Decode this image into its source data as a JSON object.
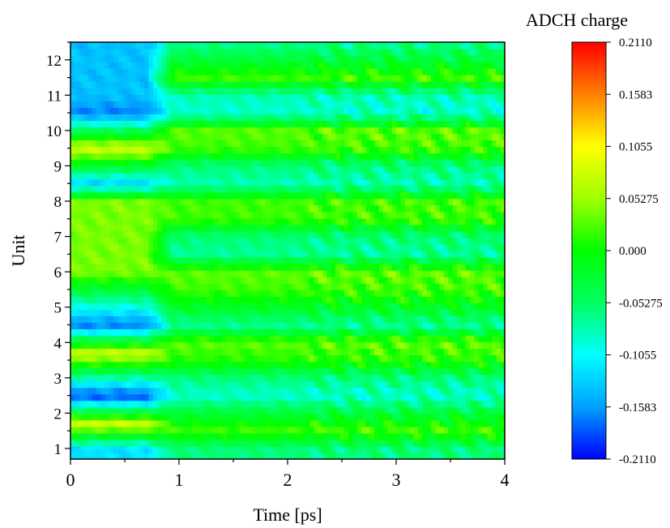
{
  "chart_data": {
    "type": "heatmap",
    "title": "",
    "xlabel": "Time [ps]",
    "ylabel": "Unit",
    "xlim": [
      0,
      4
    ],
    "ylim": [
      0.7,
      12.5
    ],
    "x_ticks": [
      "0",
      "1",
      "2",
      "3",
      "4"
    ],
    "y_ticks": [
      "1",
      "2",
      "3",
      "4",
      "5",
      "6",
      "7",
      "8",
      "9",
      "10",
      "11",
      "12"
    ],
    "colorbar": {
      "title": "ADCH charge",
      "range": [
        -0.211,
        0.211
      ],
      "tick_labels": [
        "0.2110",
        "0.1583",
        "0.1055",
        "0.05275",
        "0.000",
        "-0.05275",
        "-0.1055",
        "-0.1583",
        "-0.2110"
      ],
      "colors": [
        "#0000ff",
        "#00a0ff",
        "#00ffff",
        "#00ff60",
        "#00ff00",
        "#a0ff00",
        "#ffff00",
        "#ff8000",
        "#ff0000"
      ]
    },
    "row_profile": {
      "unit": [
        1.0,
        1.5,
        2.0,
        2.5,
        3.0,
        3.5,
        4.0,
        4.5,
        5.0,
        5.5,
        6.0,
        6.5,
        7.0,
        7.5,
        8.0,
        8.5,
        9.0,
        9.5,
        10.0,
        10.5,
        11.0,
        11.5,
        12.0,
        12.5
      ],
      "mean_charge": [
        -0.06,
        0.02,
        -0.03,
        -0.09,
        -0.06,
        0.01,
        0.03,
        -0.07,
        -0.02,
        0.02,
        0.03,
        -0.07,
        -0.06,
        0.02,
        0.02,
        -0.08,
        -0.06,
        0.02,
        0.03,
        -0.09,
        -0.08,
        0.02,
        -0.03,
        -0.07
      ]
    },
    "early_window_ps": [
      0,
      0.7
    ],
    "early_profile": {
      "unit": [
        1.0,
        1.7,
        2.5,
        3.7,
        4.5,
        6.0,
        8.0,
        8.5,
        9.5,
        10.5,
        11.0
      ],
      "mean_charge": [
        -0.12,
        0.08,
        -0.19,
        0.08,
        -0.17,
        0.04,
        0.04,
        -0.13,
        0.08,
        -0.17,
        -0.14
      ]
    }
  }
}
